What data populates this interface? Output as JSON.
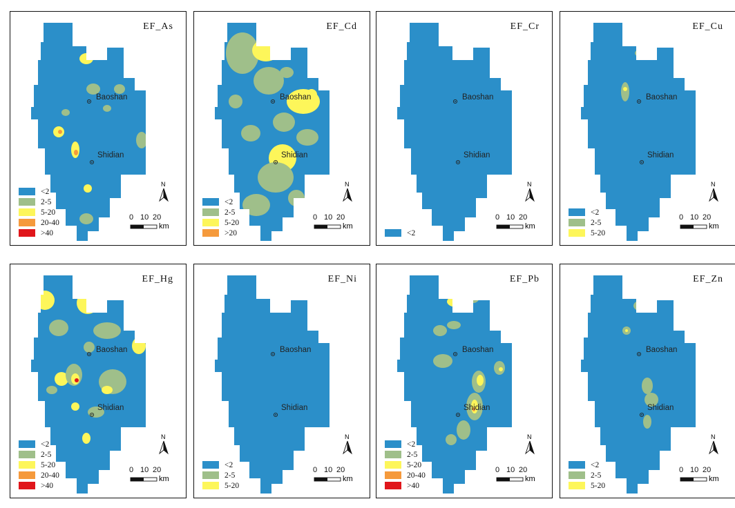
{
  "colors": {
    "lt2": "#2b8fc9",
    "c2_5": "#9fbf8a",
    "c5_20": "#fdf65a",
    "c20_40": "#f59a3c",
    "gt40": "#e0161b",
    "gt20": "#f59a3c"
  },
  "cities": {
    "baoshan": "Baoshan",
    "shidian": "Shidian"
  },
  "scale": {
    "n0": "0",
    "n10": "10",
    "n20": "20",
    "unit": "km",
    "north": "N"
  },
  "panels": [
    {
      "title": "EF_As",
      "legend": [
        {
          "label": "<2",
          "color": "#2b8fc9"
        },
        {
          "label": "2-5",
          "color": "#9fbf8a"
        },
        {
          "label": "5-20",
          "color": "#fdf65a"
        },
        {
          "label": "20-40",
          "color": "#f59a3c"
        },
        {
          "label": ">40",
          "color": "#e0161b"
        }
      ]
    },
    {
      "title": "EF_Cd",
      "legend": [
        {
          "label": "<2",
          "color": "#2b8fc9"
        },
        {
          "label": "2-5",
          "color": "#9fbf8a"
        },
        {
          "label": "5-20",
          "color": "#fdf65a"
        },
        {
          "label": ">20",
          "color": "#f59a3c"
        }
      ]
    },
    {
      "title": "EF_Cr",
      "legend": [
        {
          "label": "<2",
          "color": "#2b8fc9"
        }
      ]
    },
    {
      "title": "EF_Cu",
      "legend": [
        {
          "label": "<2",
          "color": "#2b8fc9"
        },
        {
          "label": "2-5",
          "color": "#9fbf8a"
        },
        {
          "label": "5-20",
          "color": "#fdf65a"
        }
      ]
    },
    {
      "title": "EF_Hg",
      "legend": [
        {
          "label": "<2",
          "color": "#2b8fc9"
        },
        {
          "label": "2-5",
          "color": "#9fbf8a"
        },
        {
          "label": "5-20",
          "color": "#fdf65a"
        },
        {
          "label": "20-40",
          "color": "#f59a3c"
        },
        {
          "label": ">40",
          "color": "#e0161b"
        }
      ]
    },
    {
      "title": "EF_Ni",
      "legend": [
        {
          "label": "<2",
          "color": "#2b8fc9"
        },
        {
          "label": "2-5",
          "color": "#9fbf8a"
        },
        {
          "label": "5-20",
          "color": "#fdf65a"
        }
      ]
    },
    {
      "title": "EF_Pb",
      "legend": [
        {
          "label": "<2",
          "color": "#2b8fc9"
        },
        {
          "label": "2-5",
          "color": "#9fbf8a"
        },
        {
          "label": "5-20",
          "color": "#fdf65a"
        },
        {
          "label": "20-40",
          "color": "#f59a3c"
        },
        {
          "label": ">40",
          "color": "#e0161b"
        }
      ]
    },
    {
      "title": "EF_Zn",
      "legend": [
        {
          "label": "<2",
          "color": "#2b8fc9"
        },
        {
          "label": "2-5",
          "color": "#9fbf8a"
        },
        {
          "label": "5-20",
          "color": "#fdf65a"
        }
      ]
    }
  ]
}
